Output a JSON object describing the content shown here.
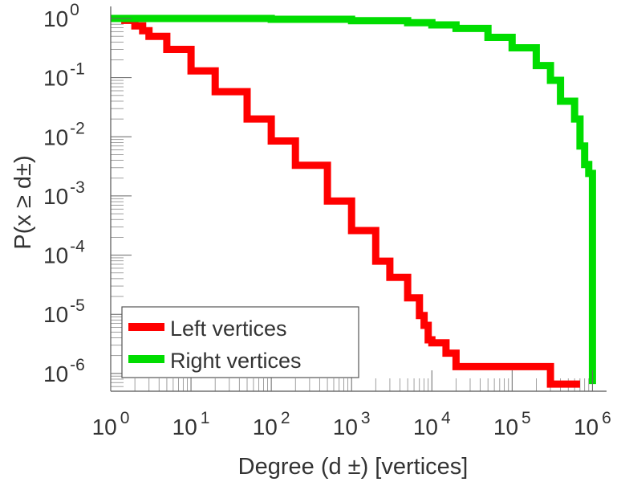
{
  "chart_data": {
    "type": "line",
    "title": "",
    "xlabel": "Degree (d  ±) [vertices]",
    "ylabel": "P(x ≥ d±)",
    "xscale": "log",
    "yscale": "log",
    "xlim": [
      1,
      1500000
    ],
    "ylim": [
      5e-07,
      1.6
    ],
    "grid": false,
    "legend": {
      "placement": "bottom-left"
    },
    "x_ticks": [
      {
        "value": 1,
        "base": "10",
        "exp": "0"
      },
      {
        "value": 10,
        "base": "10",
        "exp": "1"
      },
      {
        "value": 100,
        "base": "10",
        "exp": "2"
      },
      {
        "value": 1000,
        "base": "10",
        "exp": "3"
      },
      {
        "value": 10000,
        "base": "10",
        "exp": "4"
      },
      {
        "value": 100000,
        "base": "10",
        "exp": "5"
      },
      {
        "value": 1000000,
        "base": "10",
        "exp": "6"
      }
    ],
    "y_ticks": [
      {
        "value": 1,
        "base": "10",
        "exp": "0"
      },
      {
        "value": 0.1,
        "base": "10",
        "exp": "-1"
      },
      {
        "value": 0.01,
        "base": "10",
        "exp": "-2"
      },
      {
        "value": 0.001,
        "base": "10",
        "exp": "-3"
      },
      {
        "value": 0.0001,
        "base": "10",
        "exp": "-4"
      },
      {
        "value": 1e-05,
        "base": "10",
        "exp": "-5"
      },
      {
        "value": 1e-06,
        "base": "10",
        "exp": "-6"
      }
    ],
    "series": [
      {
        "name": "Left vertices",
        "color": "#ff0000",
        "points": [
          [
            1,
            1
          ],
          [
            1.5,
            0.93
          ],
          [
            2,
            0.75
          ],
          [
            2.5,
            0.62
          ],
          [
            3,
            0.5
          ],
          [
            5,
            0.3
          ],
          [
            10,
            0.13
          ],
          [
            20,
            0.058
          ],
          [
            50,
            0.02
          ],
          [
            100,
            0.0085
          ],
          [
            200,
            0.0033
          ],
          [
            500,
            0.00082
          ],
          [
            1000,
            0.00026
          ],
          [
            2000,
            7.9e-05
          ],
          [
            3000,
            4.2e-05
          ],
          [
            5000,
            1.9e-05
          ],
          [
            7000,
            9.5e-06
          ],
          [
            8000,
            6.5e-06
          ],
          [
            9000,
            3.7e-06
          ],
          [
            10000,
            3.3e-06
          ],
          [
            15000,
            2.2e-06
          ],
          [
            20000,
            1.3e-06
          ],
          [
            250000,
            1.3e-06
          ],
          [
            300000,
            6.6e-07
          ],
          [
            700000,
            6.6e-07
          ]
        ]
      },
      {
        "name": "Right vertices",
        "color": "#00dd00",
        "points": [
          [
            1,
            1
          ],
          [
            10,
            1
          ],
          [
            100,
            0.97
          ],
          [
            1000,
            0.92
          ],
          [
            5000,
            0.85
          ],
          [
            10000,
            0.78
          ],
          [
            20000,
            0.68
          ],
          [
            50000,
            0.48
          ],
          [
            100000,
            0.32
          ],
          [
            200000,
            0.16
          ],
          [
            300000,
            0.09
          ],
          [
            400000,
            0.04
          ],
          [
            600000,
            0.02
          ],
          [
            700000,
            0.007
          ],
          [
            800000,
            0.0034
          ],
          [
            900000,
            0.0024
          ],
          [
            1000000,
            6.6e-07
          ]
        ]
      }
    ]
  }
}
